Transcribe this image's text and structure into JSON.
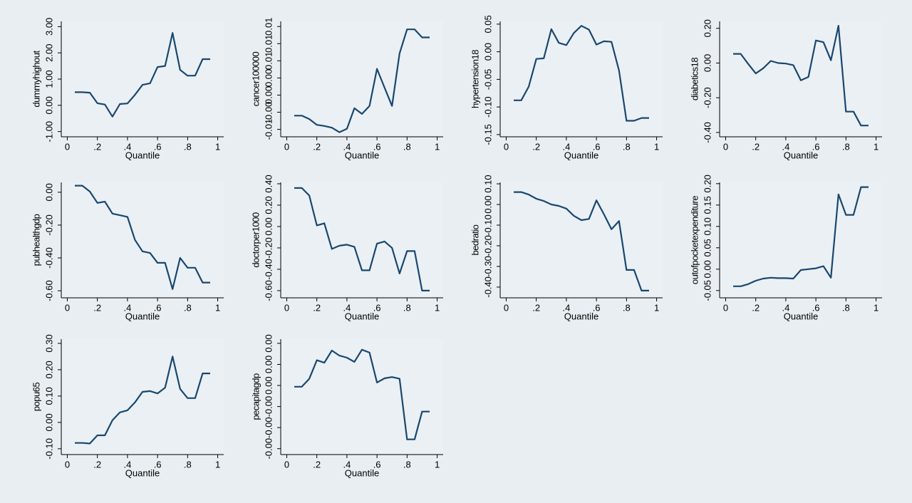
{
  "chart_data": [
    {
      "type": "line",
      "ylabel": "dummyhighout",
      "xlabel": "Quantile",
      "color": "#1a476f",
      "x": [
        0.05,
        0.1,
        0.15,
        0.2,
        0.25,
        0.3,
        0.35,
        0.4,
        0.45,
        0.5,
        0.55,
        0.6,
        0.65,
        0.7,
        0.75,
        0.8,
        0.85,
        0.9,
        0.95
      ],
      "values": [
        0.5,
        0.5,
        0.48,
        0.08,
        0.03,
        -0.43,
        0.05,
        0.07,
        0.4,
        0.78,
        0.84,
        1.46,
        1.5,
        2.76,
        1.35,
        1.13,
        1.13,
        1.76,
        1.76
      ],
      "xlim": [
        -0.04,
        1.04
      ],
      "xticks": [
        0,
        {
          "value": 0.2,
          "label": ".2"
        },
        {
          "value": 0.4,
          "label": ".4"
        },
        {
          "value": 0.6,
          "label": ".6"
        },
        {
          "value": 0.8,
          "label": ".8"
        },
        1
      ],
      "ylim": [
        -1.2,
        3.2
      ],
      "yticks": [
        {
          "value": -1,
          "label": "-1.00"
        },
        {
          "value": 0,
          "label": "0.00"
        },
        {
          "value": 1,
          "label": "1.00"
        },
        {
          "value": 2,
          "label": "2.00"
        },
        {
          "value": 3,
          "label": "3.00"
        }
      ]
    },
    {
      "type": "line",
      "ylabel": "cancer100000",
      "xlabel": "Quantile",
      "color": "#1a476f",
      "x": [
        0.05,
        0.1,
        0.15,
        0.2,
        0.25,
        0.3,
        0.35,
        0.4,
        0.45,
        0.5,
        0.55,
        0.6,
        0.65,
        0.7,
        0.75,
        0.8,
        0.85,
        0.9,
        0.95
      ],
      "values": [
        -0.0036,
        -0.0036,
        -0.0042,
        -0.0052,
        -0.0054,
        -0.0057,
        -0.0065,
        -0.0059,
        -0.0023,
        -0.0033,
        -0.0019,
        0.0046,
        0.0013,
        -0.0019,
        0.0073,
        0.0115,
        0.0115,
        0.0101,
        0.0101
      ],
      "xlim": [
        -0.04,
        1.04
      ],
      "xticks": [
        0,
        {
          "value": 0.2,
          "label": ".2"
        },
        {
          "value": 0.4,
          "label": ".4"
        },
        {
          "value": 0.6,
          "label": ".6"
        },
        {
          "value": 0.8,
          "label": ".8"
        },
        1
      ],
      "ylim": [
        -0.0073,
        0.0129
      ],
      "yticks": [
        {
          "value": -0.006,
          "label": "-0.01"
        },
        {
          "value": -0.003,
          "label": "-0.00"
        },
        {
          "value": 0,
          "label": "0.00"
        },
        {
          "value": 0.003,
          "label": "0.00"
        },
        {
          "value": 0.006,
          "label": "0.01"
        },
        {
          "value": 0.009,
          "label": "0.01"
        },
        {
          "value": 0.012,
          "label": "0.01"
        }
      ]
    },
    {
      "type": "line",
      "ylabel": "hypertension18",
      "xlabel": "Quantile",
      "color": "#1a476f",
      "x": [
        0.05,
        0.1,
        0.15,
        0.2,
        0.25,
        0.3,
        0.35,
        0.4,
        0.45,
        0.5,
        0.55,
        0.6,
        0.65,
        0.7,
        0.75,
        0.8,
        0.85,
        0.9,
        0.95
      ],
      "values": [
        -0.088,
        -0.088,
        -0.063,
        -0.013,
        -0.012,
        0.041,
        0.016,
        0.012,
        0.034,
        0.047,
        0.04,
        0.013,
        0.019,
        0.018,
        -0.034,
        -0.125,
        -0.125,
        -0.12,
        -0.12
      ],
      "xlim": [
        -0.04,
        1.04
      ],
      "xticks": [
        0,
        {
          "value": 0.2,
          "label": ".2"
        },
        {
          "value": 0.4,
          "label": ".4"
        },
        {
          "value": 0.6,
          "label": ".6"
        },
        {
          "value": 0.8,
          "label": ".8"
        },
        1
      ],
      "ylim": [
        -0.154,
        0.055
      ],
      "yticks": [
        {
          "value": -0.15,
          "label": "-0.15"
        },
        {
          "value": -0.1,
          "label": "-0.10"
        },
        {
          "value": -0.05,
          "label": "-0.05"
        },
        {
          "value": 0,
          "label": "0.00"
        },
        {
          "value": 0.05,
          "label": "0.05"
        }
      ]
    },
    {
      "type": "line",
      "ylabel": "diabetics18",
      "xlabel": "Quantile",
      "color": "#1a476f",
      "x": [
        0.05,
        0.1,
        0.15,
        0.2,
        0.25,
        0.3,
        0.35,
        0.4,
        0.45,
        0.5,
        0.55,
        0.6,
        0.65,
        0.7,
        0.75,
        0.8,
        0.85,
        0.9,
        0.95
      ],
      "values": [
        0.053,
        0.053,
        -0.005,
        -0.06,
        -0.03,
        0.012,
        0,
        -0.003,
        -0.012,
        -0.1,
        -0.08,
        0.13,
        0.12,
        0.016,
        0.215,
        -0.28,
        -0.28,
        -0.36,
        -0.36
      ],
      "xlim": [
        -0.04,
        1.04
      ],
      "xticks": [
        0,
        {
          "value": 0.2,
          "label": ".2"
        },
        {
          "value": 0.4,
          "label": ".4"
        },
        {
          "value": 0.6,
          "label": ".6"
        },
        {
          "value": 0.8,
          "label": ".8"
        },
        1
      ],
      "ylim": [
        -0.425,
        0.24
      ],
      "yticks": [
        {
          "value": -0.4,
          "label": "-0.40"
        },
        {
          "value": -0.2,
          "label": "-0.20"
        },
        {
          "value": 0,
          "label": "0.00"
        },
        {
          "value": 0.2,
          "label": "0.20"
        }
      ]
    },
    {
      "type": "line",
      "ylabel": "pubhealthgdp",
      "xlabel": "Quantile",
      "color": "#1a476f",
      "x": [
        0.05,
        0.1,
        0.15,
        0.2,
        0.25,
        0.3,
        0.35,
        0.4,
        0.45,
        0.5,
        0.55,
        0.6,
        0.65,
        0.7,
        0.75,
        0.8,
        0.85,
        0.9,
        0.95
      ],
      "values": [
        0.04,
        0.04,
        0.004,
        -0.065,
        -0.057,
        -0.13,
        -0.14,
        -0.15,
        -0.29,
        -0.36,
        -0.37,
        -0.43,
        -0.43,
        -0.59,
        -0.4,
        -0.46,
        -0.46,
        -0.55,
        -0.55
      ],
      "xlim": [
        -0.04,
        1.04
      ],
      "xticks": [
        0,
        {
          "value": 0.2,
          "label": ".2"
        },
        {
          "value": 0.4,
          "label": ".4"
        },
        {
          "value": 0.6,
          "label": ".6"
        },
        {
          "value": 0.8,
          "label": ".8"
        },
        1
      ],
      "ylim": [
        -0.643,
        0.06
      ],
      "yticks": [
        {
          "value": -0.6,
          "label": "-0.60"
        },
        {
          "value": -0.4,
          "label": "-0.40"
        },
        {
          "value": -0.2,
          "label": "-0.20"
        },
        {
          "value": 0,
          "label": "0.00"
        }
      ]
    },
    {
      "type": "line",
      "ylabel": "doctorper1000",
      "xlabel": "Quantile",
      "color": "#1a476f",
      "x": [
        0.05,
        0.1,
        0.15,
        0.2,
        0.25,
        0.3,
        0.35,
        0.4,
        0.45,
        0.5,
        0.55,
        0.6,
        0.65,
        0.7,
        0.75,
        0.8,
        0.85,
        0.9,
        0.95
      ],
      "values": [
        0.36,
        0.36,
        0.29,
        0.01,
        0.03,
        -0.21,
        -0.18,
        -0.17,
        -0.19,
        -0.41,
        -0.41,
        -0.16,
        -0.14,
        -0.2,
        -0.44,
        -0.23,
        -0.23,
        -0.6,
        -0.6
      ],
      "xlim": [
        -0.04,
        1.04
      ],
      "xticks": [
        0,
        {
          "value": 0.2,
          "label": ".2"
        },
        {
          "value": 0.4,
          "label": ".4"
        },
        {
          "value": 0.6,
          "label": ".6"
        },
        {
          "value": 0.8,
          "label": ".8"
        },
        1
      ],
      "ylim": [
        -0.667,
        0.413
      ],
      "yticks": [
        {
          "value": -0.6,
          "label": "-0.60"
        },
        {
          "value": -0.4,
          "label": "-0.40"
        },
        {
          "value": -0.2,
          "label": "-0.20"
        },
        {
          "value": 0,
          "label": "0.00"
        },
        {
          "value": 0.2,
          "label": "0.20"
        },
        {
          "value": 0.4,
          "label": "0.40"
        }
      ]
    },
    {
      "type": "line",
      "ylabel": "bedratio",
      "xlabel": "Quantile",
      "color": "#1a476f",
      "x": [
        0.05,
        0.1,
        0.15,
        0.2,
        0.25,
        0.3,
        0.35,
        0.4,
        0.45,
        0.5,
        0.55,
        0.6,
        0.65,
        0.7,
        0.75,
        0.8,
        0.85,
        0.9,
        0.95
      ],
      "values": [
        0.06,
        0.06,
        0.048,
        0.028,
        0.017,
        0,
        -0.007,
        -0.02,
        -0.055,
        -0.076,
        -0.07,
        0.02,
        -0.048,
        -0.12,
        -0.08,
        -0.317,
        -0.317,
        -0.417,
        -0.417
      ],
      "xlim": [
        -0.04,
        1.04
      ],
      "xticks": [
        0,
        {
          "value": 0.2,
          "label": ".2"
        },
        {
          "value": 0.4,
          "label": ".4"
        },
        {
          "value": 0.6,
          "label": ".6"
        },
        {
          "value": 0.8,
          "label": ".8"
        },
        1
      ],
      "ylim": [
        -0.452,
        0.107
      ],
      "yticks": [
        {
          "value": -0.4,
          "label": "-0.40"
        },
        {
          "value": -0.3,
          "label": "-0.30"
        },
        {
          "value": -0.2,
          "label": "-0.20"
        },
        {
          "value": -0.1,
          "label": "-0.10"
        },
        {
          "value": 0,
          "label": "0.00"
        },
        {
          "value": 0.1,
          "label": "0.10"
        }
      ]
    },
    {
      "type": "line",
      "ylabel": "outofpocketexpenditure",
      "xlabel": "Quantile",
      "color": "#1a476f",
      "x": [
        0.05,
        0.1,
        0.15,
        0.2,
        0.25,
        0.3,
        0.35,
        0.4,
        0.45,
        0.5,
        0.55,
        0.6,
        0.65,
        0.7,
        0.75,
        0.8,
        0.85,
        0.9,
        0.95
      ],
      "values": [
        -0.04,
        -0.04,
        -0.035,
        -0.027,
        -0.022,
        -0.02,
        -0.021,
        -0.021,
        -0.022,
        -0.002,
        0,
        0.002,
        0.007,
        -0.02,
        0.175,
        0.127,
        0.127,
        0.192,
        0.192
      ],
      "xlim": [
        -0.04,
        1.04
      ],
      "xticks": [
        0,
        {
          "value": 0.2,
          "label": ".2"
        },
        {
          "value": 0.4,
          "label": ".4"
        },
        {
          "value": 0.6,
          "label": ".6"
        },
        {
          "value": 0.8,
          "label": ".8"
        },
        1
      ],
      "ylim": [
        -0.067,
        0.203
      ],
      "yticks": [
        {
          "value": -0.05,
          "label": "-0.05"
        },
        {
          "value": 0,
          "label": "0.00"
        },
        {
          "value": 0.05,
          "label": "0.05"
        },
        {
          "value": 0.1,
          "label": "0.10"
        },
        {
          "value": 0.15,
          "label": "0.15"
        },
        {
          "value": 0.2,
          "label": "0.20"
        }
      ]
    },
    {
      "type": "line",
      "ylabel": "popu65",
      "xlabel": "Quantile",
      "color": "#1a476f",
      "x": [
        0.05,
        0.1,
        0.15,
        0.2,
        0.25,
        0.3,
        0.35,
        0.4,
        0.45,
        0.5,
        0.55,
        0.6,
        0.65,
        0.7,
        0.75,
        0.8,
        0.85,
        0.9,
        0.95
      ],
      "values": [
        -0.078,
        -0.078,
        -0.08,
        -0.049,
        -0.049,
        0.008,
        0.038,
        0.046,
        0.076,
        0.116,
        0.119,
        0.11,
        0.132,
        0.25,
        0.127,
        0.092,
        0.092,
        0.186,
        0.186
      ],
      "xlim": [
        -0.04,
        1.04
      ],
      "xticks": [
        0,
        {
          "value": 0.2,
          "label": ".2"
        },
        {
          "value": 0.4,
          "label": ".4"
        },
        {
          "value": 0.6,
          "label": ".6"
        },
        {
          "value": 0.8,
          "label": ".8"
        },
        1
      ],
      "ylim": [
        -0.122,
        0.316
      ],
      "yticks": [
        {
          "value": -0.1,
          "label": "-0.10"
        },
        {
          "value": 0,
          "label": "0.00"
        },
        {
          "value": 0.1,
          "label": "0.10"
        },
        {
          "value": 0.2,
          "label": "0.20"
        },
        {
          "value": 0.3,
          "label": "0.30"
        }
      ]
    },
    {
      "type": "line",
      "ylabel": "pecapitagdp",
      "xlabel": "Quantile",
      "color": "#1a476f",
      "x": [
        0.05,
        0.1,
        0.15,
        0.2,
        0.25,
        0.3,
        0.35,
        0.4,
        0.45,
        0.5,
        0.55,
        0.6,
        0.65,
        0.7,
        0.75,
        0.8,
        0.85,
        0.9,
        0.95
      ],
      "values": [
        -3e-05,
        -3e-05,
        0.00016,
        0.0006,
        0.00054,
        0.00083,
        0.00071,
        0.00066,
        0.00056,
        0.00085,
        0.00078,
        7e-05,
        0.00017,
        0.0002,
        0.00016,
        -0.00128,
        -0.00128,
        -0.00062,
        -0.00062
      ],
      "xlim": [
        -0.04,
        1.04
      ],
      "xticks": [
        0,
        {
          "value": 0.2,
          "label": ".2"
        },
        {
          "value": 0.4,
          "label": ".4"
        },
        {
          "value": 0.6,
          "label": ".6"
        },
        {
          "value": 0.8,
          "label": ".8"
        },
        1
      ],
      "ylim": [
        -0.00164,
        0.0011
      ],
      "yticks": [
        {
          "value": -0.0015,
          "label": "-0.00"
        },
        {
          "value": -0.001,
          "label": "-0.00"
        },
        {
          "value": -0.0005,
          "label": "-0.00"
        },
        {
          "value": 0,
          "label": "0.00"
        },
        {
          "value": 0.0005,
          "label": "0.00"
        },
        {
          "value": 0.001,
          "label": "0.00"
        }
      ]
    }
  ]
}
